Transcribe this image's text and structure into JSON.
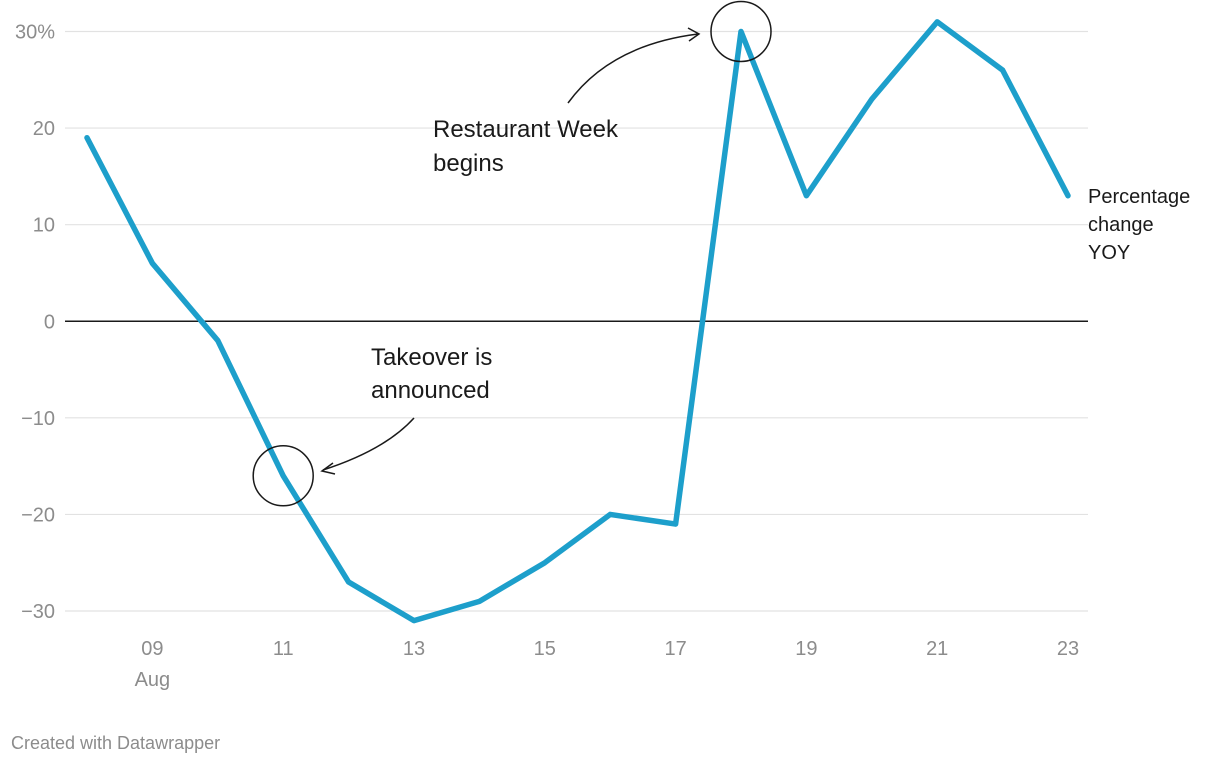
{
  "chart_data": {
    "type": "line",
    "x": [
      "08",
      "09",
      "10",
      "11",
      "12",
      "13",
      "14",
      "15",
      "16",
      "17",
      "18",
      "19",
      "20",
      "21",
      "22",
      "23"
    ],
    "xtick_labels": [
      "09",
      "11",
      "13",
      "15",
      "17",
      "19",
      "21",
      "23"
    ],
    "x_month_label": "Aug",
    "series": [
      {
        "name": "Percentage change YOY",
        "values": [
          19,
          6,
          -2,
          -16,
          -27,
          -31,
          -29,
          -25,
          -20,
          -21,
          30,
          13,
          23,
          31,
          26,
          13
        ],
        "color": "#1d9fcb"
      }
    ],
    "ylim": [
      -31,
      31
    ],
    "yticks": [
      -30,
      -20,
      -10,
      0,
      10,
      20,
      30
    ],
    "ytick_labels": [
      "−30",
      "−20",
      "−10",
      "0",
      "10",
      "20",
      "30%"
    ],
    "grid": true,
    "annotations": [
      {
        "lines": [
          "Restaurant Week",
          "begins"
        ],
        "x": "18",
        "y": 30
      },
      {
        "lines": [
          "Takeover is",
          "announced"
        ],
        "x": "11",
        "y": -16
      }
    ],
    "series_label_lines": [
      "Percentage",
      "change",
      "YOY"
    ]
  },
  "footer": {
    "credit": "Created with Datawrapper"
  }
}
